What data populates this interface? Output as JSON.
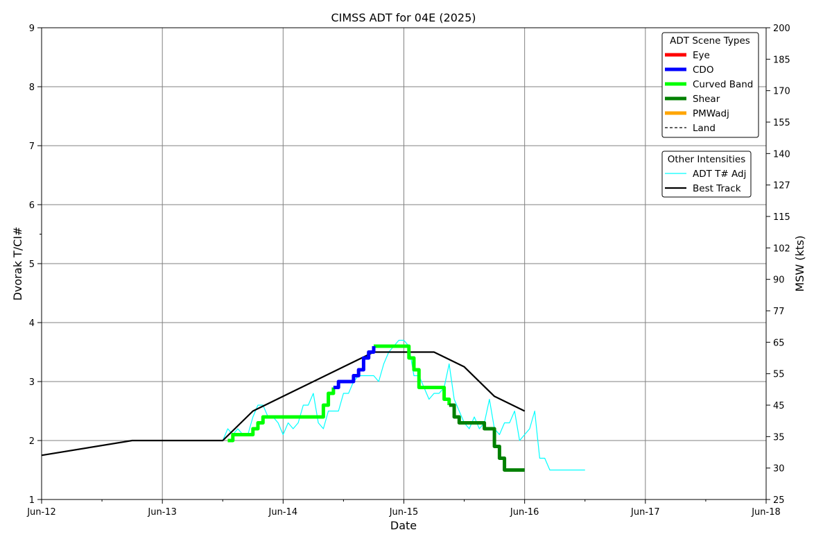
{
  "chart_data": {
    "type": "line",
    "title": "CIMSS ADT for 04E (2025)",
    "xlabel": "Date",
    "ylabel": "Dvorak T/CI#",
    "ylabel_right": "MSW (kts)",
    "x_axis_type": "date",
    "xlim": [
      "2025-06-12",
      "2025-06-18"
    ],
    "ylim": [
      1,
      9
    ],
    "x_ticks": [
      {
        "value": "2025-06-12",
        "label": "Jun-12"
      },
      {
        "value": "2025-06-13",
        "label": "Jun-13"
      },
      {
        "value": "2025-06-14",
        "label": "Jun-14"
      },
      {
        "value": "2025-06-15",
        "label": "Jun-15"
      },
      {
        "value": "2025-06-16",
        "label": "Jun-16"
      },
      {
        "value": "2025-06-17",
        "label": "Jun-17"
      },
      {
        "value": "2025-06-18",
        "label": "Jun-18"
      }
    ],
    "x_minor_ticks": [
      "2025-06-12 12:00",
      "2025-06-13 12:00",
      "2025-06-14 12:00",
      "2025-06-15 12:00",
      "2025-06-16 12:00",
      "2025-06-17 12:00"
    ],
    "y_ticks": [
      "1",
      "2",
      "3",
      "4",
      "5",
      "6",
      "7",
      "8",
      "9"
    ],
    "y_right_ticks": [
      "25",
      "30",
      "35",
      "45",
      "55",
      "65",
      "77",
      "90",
      "102",
      "115",
      "127",
      "140",
      "155",
      "170",
      "185",
      "200"
    ],
    "grid": true,
    "legends": [
      {
        "title": "ADT Scene Types",
        "placement": "top-right",
        "entries": [
          {
            "label": "Eye",
            "color": "#ff0000",
            "style": "thick"
          },
          {
            "label": "CDO",
            "color": "#0000ff",
            "style": "thick"
          },
          {
            "label": "Curved Band",
            "color": "#00ff00",
            "style": "thick"
          },
          {
            "label": "Shear",
            "color": "#008000",
            "style": "thick"
          },
          {
            "label": "PMWadj",
            "color": "#ffa500",
            "style": "thick"
          },
          {
            "label": "Land",
            "color": "#000000",
            "style": "dashed"
          }
        ]
      },
      {
        "title": "Other Intensities",
        "placement": "right",
        "entries": [
          {
            "label": "ADT T# Adj",
            "color": "#00ffff",
            "style": "thin"
          },
          {
            "label": "Best Track",
            "color": "#000000",
            "style": "medium"
          }
        ]
      }
    ],
    "series": [
      {
        "name": "Best Track",
        "color": "#000000",
        "points": [
          [
            "2025-06-12 00:00",
            1.75
          ],
          [
            "2025-06-12 18:00",
            2.0
          ],
          [
            "2025-06-13 12:00",
            2.0
          ],
          [
            "2025-06-13 18:00",
            2.5
          ],
          [
            "2025-06-14 00:00",
            2.75
          ],
          [
            "2025-06-14 06:00",
            3.0
          ],
          [
            "2025-06-14 12:00",
            3.25
          ],
          [
            "2025-06-14 18:00",
            3.5
          ],
          [
            "2025-06-15 00:00",
            3.5
          ],
          [
            "2025-06-15 06:00",
            3.5
          ],
          [
            "2025-06-15 12:00",
            3.25
          ],
          [
            "2025-06-15 18:00",
            2.75
          ],
          [
            "2025-06-16 00:00",
            2.5
          ]
        ]
      },
      {
        "name": "ADT T# Adj",
        "color": "#00ffff",
        "points": [
          [
            "2025-06-13 12:00",
            2.0
          ],
          [
            "2025-06-13 13:00",
            2.2
          ],
          [
            "2025-06-13 14:00",
            2.1
          ],
          [
            "2025-06-13 15:00",
            2.2
          ],
          [
            "2025-06-13 16:00",
            2.1
          ],
          [
            "2025-06-13 17:00",
            2.1
          ],
          [
            "2025-06-13 18:00",
            2.4
          ],
          [
            "2025-06-13 19:00",
            2.6
          ],
          [
            "2025-06-13 20:00",
            2.6
          ],
          [
            "2025-06-13 21:00",
            2.4
          ],
          [
            "2025-06-13 22:00",
            2.4
          ],
          [
            "2025-06-13 23:00",
            2.3
          ],
          [
            "2025-06-14 00:00",
            2.1
          ],
          [
            "2025-06-14 01:00",
            2.3
          ],
          [
            "2025-06-14 02:00",
            2.2
          ],
          [
            "2025-06-14 03:00",
            2.3
          ],
          [
            "2025-06-14 04:00",
            2.6
          ],
          [
            "2025-06-14 05:00",
            2.6
          ],
          [
            "2025-06-14 06:00",
            2.8
          ],
          [
            "2025-06-14 07:00",
            2.3
          ],
          [
            "2025-06-14 08:00",
            2.2
          ],
          [
            "2025-06-14 09:00",
            2.5
          ],
          [
            "2025-06-14 10:00",
            2.5
          ],
          [
            "2025-06-14 11:00",
            2.5
          ],
          [
            "2025-06-14 12:00",
            2.8
          ],
          [
            "2025-06-14 13:00",
            2.8
          ],
          [
            "2025-06-14 14:00",
            3.0
          ],
          [
            "2025-06-14 15:00",
            3.1
          ],
          [
            "2025-06-14 16:00",
            3.1
          ],
          [
            "2025-06-14 17:00",
            3.1
          ],
          [
            "2025-06-14 18:00",
            3.1
          ],
          [
            "2025-06-14 19:00",
            3.0
          ],
          [
            "2025-06-14 20:00",
            3.3
          ],
          [
            "2025-06-14 21:00",
            3.5
          ],
          [
            "2025-06-14 22:00",
            3.6
          ],
          [
            "2025-06-14 23:00",
            3.7
          ],
          [
            "2025-06-15 00:00",
            3.7
          ],
          [
            "2025-06-15 01:00",
            3.6
          ],
          [
            "2025-06-15 02:00",
            3.1
          ],
          [
            "2025-06-15 03:00",
            3.1
          ],
          [
            "2025-06-15 04:00",
            2.9
          ],
          [
            "2025-06-15 05:00",
            2.7
          ],
          [
            "2025-06-15 06:00",
            2.8
          ],
          [
            "2025-06-15 07:00",
            2.8
          ],
          [
            "2025-06-15 08:00",
            2.9
          ],
          [
            "2025-06-15 09:00",
            3.3
          ],
          [
            "2025-06-15 10:00",
            2.7
          ],
          [
            "2025-06-15 11:00",
            2.5
          ],
          [
            "2025-06-15 12:00",
            2.3
          ],
          [
            "2025-06-15 13:00",
            2.2
          ],
          [
            "2025-06-15 14:00",
            2.4
          ],
          [
            "2025-06-15 15:00",
            2.2
          ],
          [
            "2025-06-15 16:00",
            2.3
          ],
          [
            "2025-06-15 17:00",
            2.7
          ],
          [
            "2025-06-15 18:00",
            2.2
          ],
          [
            "2025-06-15 19:00",
            2.1
          ],
          [
            "2025-06-15 20:00",
            2.3
          ],
          [
            "2025-06-15 21:00",
            2.3
          ],
          [
            "2025-06-15 22:00",
            2.5
          ],
          [
            "2025-06-15 23:00",
            2.0
          ],
          [
            "2025-06-16 00:00",
            2.1
          ],
          [
            "2025-06-16 01:00",
            2.2
          ],
          [
            "2025-06-16 02:00",
            2.5
          ],
          [
            "2025-06-16 03:00",
            1.7
          ],
          [
            "2025-06-16 04:00",
            1.7
          ],
          [
            "2025-06-16 05:00",
            1.5
          ],
          [
            "2025-06-16 06:00",
            1.5
          ],
          [
            "2025-06-16 07:00",
            1.5
          ],
          [
            "2025-06-16 08:00",
            1.5
          ],
          [
            "2025-06-16 09:00",
            1.5
          ],
          [
            "2025-06-16 10:00",
            1.5
          ],
          [
            "2025-06-16 11:00",
            1.5
          ],
          [
            "2025-06-16 12:00",
            1.5
          ]
        ]
      },
      {
        "name": "Curved Band",
        "color": "#00ff00",
        "points": [
          [
            "2025-06-13 13:00",
            2.0
          ],
          [
            "2025-06-13 14:00",
            2.1
          ],
          [
            "2025-06-13 15:00",
            2.1
          ],
          [
            "2025-06-13 16:00",
            2.1
          ],
          [
            "2025-06-13 17:00",
            2.1
          ],
          [
            "2025-06-13 18:00",
            2.2
          ],
          [
            "2025-06-13 19:00",
            2.3
          ],
          [
            "2025-06-13 20:00",
            2.4
          ],
          [
            "2025-06-13 21:00",
            2.4
          ],
          [
            "2025-06-14 00:00",
            2.4
          ],
          [
            "2025-06-14 03:00",
            2.4
          ],
          [
            "2025-06-14 06:00",
            2.4
          ],
          [
            "2025-06-14 07:00",
            2.4
          ],
          [
            "2025-06-14 08:00",
            2.6
          ],
          [
            "2025-06-14 09:00",
            2.8
          ],
          [
            "2025-06-14 10:00",
            2.9
          ]
        ]
      },
      {
        "name": "CDO",
        "color": "#0000ff",
        "points": [
          [
            "2025-06-14 10:00",
            2.9
          ],
          [
            "2025-06-14 11:00",
            3.0
          ],
          [
            "2025-06-14 12:00",
            3.0
          ],
          [
            "2025-06-14 13:00",
            3.0
          ],
          [
            "2025-06-14 14:00",
            3.1
          ],
          [
            "2025-06-14 15:00",
            3.2
          ],
          [
            "2025-06-14 16:00",
            3.4
          ],
          [
            "2025-06-14 17:00",
            3.5
          ],
          [
            "2025-06-14 18:00",
            3.6
          ]
        ]
      },
      {
        "name": "Curved Band",
        "color": "#00ff00",
        "points": [
          [
            "2025-06-14 18:00",
            3.6
          ],
          [
            "2025-06-14 20:00",
            3.6
          ],
          [
            "2025-06-14 23:00",
            3.6
          ],
          [
            "2025-06-15 01:00",
            3.4
          ],
          [
            "2025-06-15 02:00",
            3.2
          ],
          [
            "2025-06-15 03:00",
            2.9
          ],
          [
            "2025-06-15 05:00",
            2.9
          ],
          [
            "2025-06-15 07:00",
            2.9
          ],
          [
            "2025-06-15 08:00",
            2.7
          ],
          [
            "2025-06-15 09:00",
            2.6
          ]
        ]
      },
      {
        "name": "Shear",
        "color": "#008000",
        "points": [
          [
            "2025-06-15 09:00",
            2.6
          ],
          [
            "2025-06-15 10:00",
            2.4
          ],
          [
            "2025-06-15 11:00",
            2.3
          ],
          [
            "2025-06-15 13:00",
            2.3
          ],
          [
            "2025-06-15 15:00",
            2.3
          ],
          [
            "2025-06-15 16:00",
            2.2
          ],
          [
            "2025-06-15 17:00",
            2.2
          ],
          [
            "2025-06-15 18:00",
            1.9
          ],
          [
            "2025-06-15 19:00",
            1.7
          ],
          [
            "2025-06-15 20:00",
            1.5
          ],
          [
            "2025-06-15 22:00",
            1.5
          ],
          [
            "2025-06-16 00:00",
            1.5
          ]
        ]
      }
    ]
  }
}
